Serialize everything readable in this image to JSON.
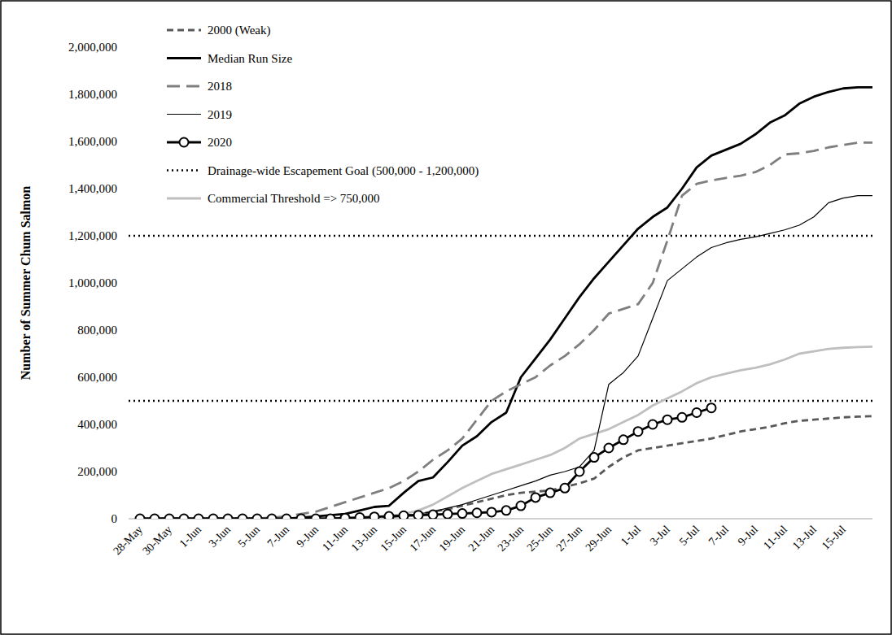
{
  "chart_data": {
    "type": "line",
    "y_label": "Number of Summer Chum Salmon",
    "categories": [
      "28-May",
      null,
      "30-May",
      null,
      "1-Jun",
      null,
      "3-Jun",
      null,
      "5-Jun",
      null,
      "7-Jun",
      null,
      "9-Jun",
      null,
      "11-Jun",
      null,
      "13-Jun",
      null,
      "15-Jun",
      null,
      "17-Jun",
      null,
      "19-Jun",
      null,
      "21-Jun",
      null,
      "23-Jun",
      null,
      "25-Jun",
      null,
      "27-Jun",
      null,
      "29-Jun",
      null,
      "1-Jul",
      null,
      "3-Jul",
      null,
      "5-Jul",
      null,
      "7-Jul",
      null,
      "9-Jul",
      null,
      "11-Jul",
      null,
      "13-Jul",
      null,
      "15-Jul",
      null,
      null
    ],
    "ylim": [
      0,
      2000000
    ],
    "yticks": [
      0,
      {
        "value": 200000,
        "label": "200,000"
      },
      {
        "value": 400000,
        "label": "400,000"
      },
      {
        "value": 600000,
        "label": "600,000"
      },
      {
        "value": 800000,
        "label": "800,000"
      },
      {
        "value": 1000000,
        "label": "1,000,000"
      },
      {
        "value": 1200000,
        "label": "1,200,000"
      },
      {
        "value": 1400000,
        "label": "1,400,000"
      },
      {
        "value": 1600000,
        "label": "1,600,000"
      },
      {
        "value": 1800000,
        "label": "1,800,000"
      },
      {
        "value": 2000000,
        "label": "2,000,000"
      }
    ],
    "grid": false,
    "legend": "upper left",
    "series": [
      {
        "name": "2000 (Weak)",
        "color": "#595959",
        "line_style": "dashed",
        "marker": "none",
        "values": [
          0,
          0,
          0,
          0,
          0,
          0,
          0,
          0,
          0,
          0,
          0,
          0,
          0,
          0,
          0,
          3000,
          5000,
          8000,
          12000,
          20000,
          30000,
          40000,
          55000,
          70000,
          85000,
          100000,
          110000,
          115000,
          120000,
          135000,
          150000,
          170000,
          220000,
          260000,
          290000,
          300000,
          310000,
          320000,
          330000,
          340000,
          355000,
          370000,
          380000,
          390000,
          405000,
          415000,
          420000,
          425000,
          430000,
          433000,
          435000
        ]
      },
      {
        "name": "Median Run Size",
        "color": "#000000",
        "line_style": "solid",
        "marker": "none",
        "values": [
          0,
          0,
          0,
          0,
          0,
          0,
          0,
          0,
          0,
          0,
          0,
          5000,
          10000,
          15000,
          20000,
          35000,
          50000,
          55000,
          110000,
          160000,
          175000,
          240000,
          310000,
          350000,
          410000,
          450000,
          600000,
          680000,
          760000,
          850000,
          940000,
          1020000,
          1090000,
          1160000,
          1230000,
          1280000,
          1320000,
          1400000,
          1490000,
          1540000,
          1565000,
          1590000,
          1630000,
          1680000,
          1710000,
          1760000,
          1790000,
          1810000,
          1825000,
          1830000,
          1830000
        ]
      },
      {
        "name": "2018",
        "color": "#7f7f7f",
        "line_style": "long_dash",
        "marker": "none",
        "values": [
          0,
          0,
          0,
          0,
          0,
          0,
          0,
          0,
          0,
          5000,
          10000,
          20000,
          30000,
          50000,
          70000,
          90000,
          110000,
          130000,
          160000,
          200000,
          250000,
          290000,
          340000,
          420000,
          500000,
          540000,
          570000,
          600000,
          650000,
          690000,
          740000,
          800000,
          870000,
          890000,
          910000,
          1000000,
          1180000,
          1370000,
          1420000,
          1435000,
          1445000,
          1455000,
          1470000,
          1500000,
          1545000,
          1550000,
          1560000,
          1575000,
          1585000,
          1595000,
          1595000
        ]
      },
      {
        "name": "2019",
        "color": "#000000",
        "line_style": "thin",
        "marker": "none",
        "values": [
          0,
          0,
          0,
          0,
          0,
          0,
          0,
          0,
          0,
          0,
          0,
          0,
          0,
          0,
          2000,
          5000,
          8000,
          12000,
          15000,
          20000,
          30000,
          45000,
          60000,
          80000,
          100000,
          120000,
          140000,
          160000,
          185000,
          200000,
          220000,
          290000,
          570000,
          620000,
          690000,
          850000,
          1010000,
          1060000,
          1110000,
          1150000,
          1170000,
          1185000,
          1195000,
          1210000,
          1225000,
          1245000,
          1280000,
          1340000,
          1360000,
          1370000,
          1370000
        ]
      },
      {
        "name": "2020",
        "color": "#000000",
        "line_style": "solid",
        "marker": "circle",
        "values": [
          0,
          0,
          0,
          0,
          0,
          0,
          0,
          0,
          0,
          0,
          0,
          0,
          0,
          0,
          3000,
          5000,
          8000,
          10000,
          13000,
          15000,
          17000,
          20000,
          22000,
          25000,
          28000,
          35000,
          55000,
          90000,
          110000,
          130000,
          200000,
          260000,
          300000,
          335000,
          370000,
          400000,
          420000,
          430000,
          450000,
          470000,
          null,
          null,
          null,
          null,
          null,
          null,
          null,
          null,
          null,
          null,
          null
        ]
      },
      {
        "name": "Commercial Threshold => 750,000",
        "color": "#bfbfbf",
        "line_style": "solid",
        "marker": "none",
        "values": [
          0,
          0,
          0,
          0,
          0,
          0,
          0,
          0,
          0,
          0,
          0,
          0,
          0,
          0,
          2000,
          5000,
          8000,
          12000,
          20000,
          35000,
          60000,
          95000,
          130000,
          160000,
          190000,
          210000,
          230000,
          250000,
          270000,
          300000,
          340000,
          360000,
          380000,
          410000,
          440000,
          480000,
          510000,
          540000,
          575000,
          600000,
          615000,
          630000,
          640000,
          655000,
          675000,
          700000,
          710000,
          720000,
          725000,
          728000,
          730000
        ]
      }
    ],
    "reference_lines": [
      {
        "name": "Drainage-wide Escapement Goal (500,000 - 1,200,000)",
        "color": "#000000",
        "line_style": "dotted",
        "values": [
          500000,
          1200000
        ]
      }
    ]
  }
}
